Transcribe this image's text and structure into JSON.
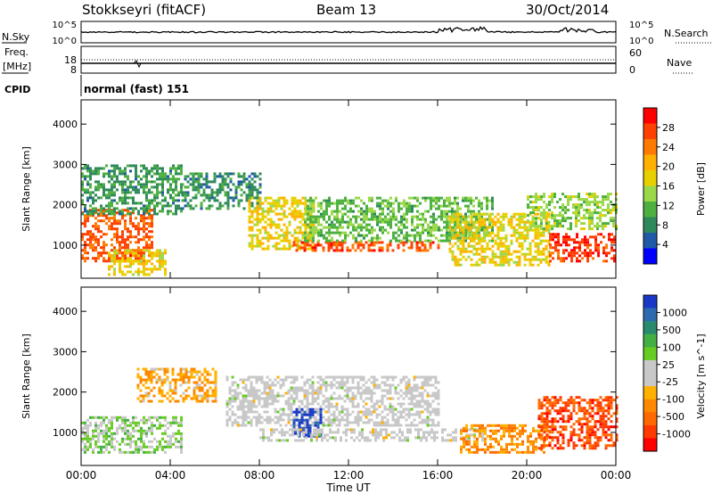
{
  "header": {
    "station": "Stokkseyri (fitACF)",
    "beam": "Beam 13",
    "date": "30/Oct/2014"
  },
  "noise_panel": {
    "left_label": "N.Sky",
    "left_ticks": [
      "10^5",
      "10^0"
    ],
    "right_label": "N.Search",
    "right_ticks": [
      "10^5",
      "10^0"
    ]
  },
  "freq_panel": {
    "left_label_line1": "Freq.",
    "left_label_line2": "[MHz]",
    "left_ticks": [
      "18",
      "8"
    ],
    "right_ticks": [
      "60",
      "0"
    ],
    "right_label": "Nave"
  },
  "cpid": {
    "label": "CPID",
    "mode": "normal (fast) 151"
  },
  "power_colorbar": {
    "label": "Power [dB]",
    "ticks": [
      "28",
      "24",
      "20",
      "16",
      "12",
      "8",
      "4"
    ],
    "colors": [
      "#ff0000",
      "#ff4000",
      "#ff7a00",
      "#ffb000",
      "#e8d000",
      "#9ad84a",
      "#4db040",
      "#2e8a5a",
      "#1e5aa8",
      "#0000ff"
    ]
  },
  "velocity_colorbar": {
    "label": "Velocity [m s^-1]",
    "ticks": [
      "1000",
      "500",
      "100",
      "25",
      "-25",
      "-100",
      "-500",
      "-1000"
    ],
    "colors": [
      "#1a38c8",
      "#2e6ab0",
      "#2a8a70",
      "#44b044",
      "#66cc22",
      "#c8c8c8",
      "#c8c8c8",
      "#ffb000",
      "#ff8800",
      "#ff6a00",
      "#ff3a00",
      "#ff0000"
    ]
  },
  "axes": {
    "ylabel": "Slant Range [km]",
    "yticks": [
      "1000",
      "2000",
      "3000",
      "4000"
    ],
    "xticks": [
      "00:00",
      "04:00",
      "08:00",
      "12:00",
      "16:00",
      "20:00",
      "00:00"
    ],
    "xlabel": "Time UT"
  },
  "chart_data": [
    {
      "type": "heatmap",
      "title": "",
      "xlabel": "",
      "ylabel": "Slant Range [km]",
      "x_range_hours": [
        0,
        24
      ],
      "y_range_km": [
        180,
        4600
      ],
      "colorbar": "Power [dB]",
      "clim": [
        0,
        32
      ],
      "regions": [
        {
          "t0": 0.0,
          "t1": 3.2,
          "r0": 600,
          "r1": 1900,
          "value": 26
        },
        {
          "t0": 1.2,
          "t1": 3.8,
          "r0": 300,
          "r1": 900,
          "value": 18
        },
        {
          "t0": 0.0,
          "t1": 4.5,
          "r0": 1800,
          "r1": 3000,
          "value": 9
        },
        {
          "t0": 4.5,
          "t1": 8.0,
          "r0": 1900,
          "r1": 2800,
          "value": 8
        },
        {
          "t0": 7.5,
          "t1": 10.5,
          "r0": 900,
          "r1": 2200,
          "value": 18
        },
        {
          "t0": 9.5,
          "t1": 16.0,
          "r0": 900,
          "r1": 1100,
          "value": 27
        },
        {
          "t0": 10.0,
          "t1": 18.5,
          "r0": 1100,
          "r1": 2200,
          "value": 12
        },
        {
          "t0": 16.5,
          "t1": 21.0,
          "r0": 500,
          "r1": 1800,
          "value": 18
        },
        {
          "t0": 21.0,
          "t1": 24.0,
          "r0": 600,
          "r1": 1300,
          "value": 28
        },
        {
          "t0": 20.0,
          "t1": 24.0,
          "r0": 1400,
          "r1": 2300,
          "value": 14
        }
      ]
    },
    {
      "type": "heatmap",
      "title": "",
      "xlabel": "Time UT",
      "ylabel": "Slant Range [km]",
      "x_range_hours": [
        0,
        24
      ],
      "y_range_km": [
        180,
        4600
      ],
      "colorbar": "Velocity [m s^-1]",
      "clim": [
        -1000,
        1000
      ],
      "regions": [
        {
          "t0": 0.0,
          "t1": 4.5,
          "r0": 500,
          "r1": 1400,
          "value": 200
        },
        {
          "t0": 2.5,
          "t1": 6.0,
          "r0": 1800,
          "r1": 2600,
          "value": -300
        },
        {
          "t0": 6.5,
          "t1": 16.0,
          "r0": 1200,
          "r1": 2400,
          "value": 0
        },
        {
          "t0": 9.5,
          "t1": 10.8,
          "r0": 900,
          "r1": 1600,
          "value": 900
        },
        {
          "t0": 8.0,
          "t1": 18.0,
          "r0": 800,
          "r1": 1100,
          "value": 0
        },
        {
          "t0": 17.0,
          "t1": 21.0,
          "r0": 500,
          "r1": 1200,
          "value": -400
        },
        {
          "t0": 20.5,
          "t1": 24.0,
          "r0": 600,
          "r1": 1900,
          "value": -700
        }
      ]
    }
  ]
}
